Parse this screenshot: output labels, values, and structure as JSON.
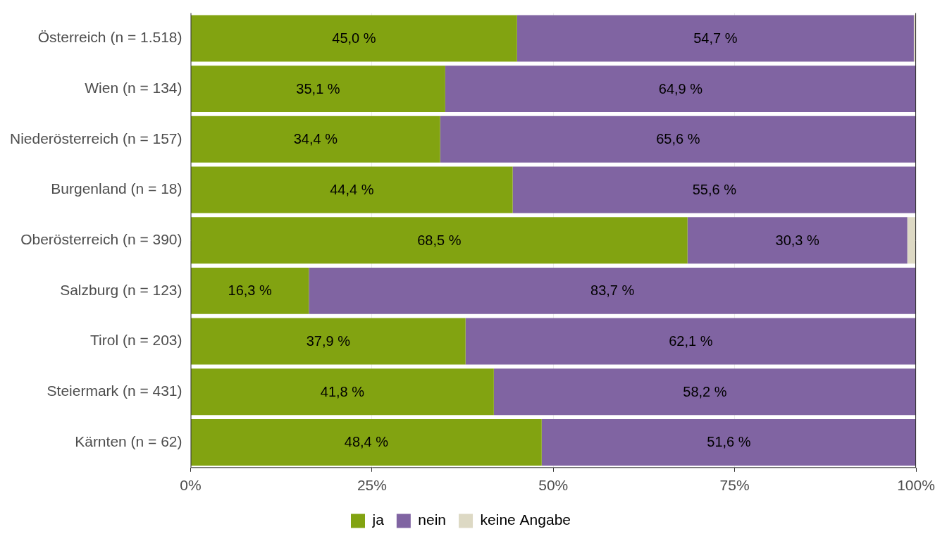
{
  "chart_data": {
    "type": "bar",
    "orientation": "horizontal",
    "stacked": true,
    "data_labels": true,
    "grid": true,
    "legend": "bottom",
    "categories": [
      "Österreich (n = 1.518)",
      "Wien (n = 134)",
      "Niederösterreich (n = 157)",
      "Burgenland (n = 18)",
      "Oberösterreich (n = 390)",
      "Salzburg (n = 123)",
      "Tirol (n = 203)",
      "Steiermark (n = 431)",
      "Kärnten (n = 62)"
    ],
    "xlim": [
      0,
      100
    ],
    "xticks": [
      {
        "value": 0,
        "label": "0%"
      },
      {
        "value": 25,
        "label": "25%"
      },
      {
        "value": 50,
        "label": "50%"
      },
      {
        "value": 75,
        "label": "75%"
      },
      {
        "value": 100,
        "label": "100%"
      }
    ],
    "series": [
      {
        "name": "ja",
        "color": "#82a311",
        "values": [
          45.0,
          35.1,
          34.4,
          44.4,
          68.5,
          16.3,
          37.9,
          41.8,
          48.4
        ],
        "value_labels": [
          "45,0 %",
          "35,1 %",
          "34,4 %",
          "44,4 %",
          "68,5 %",
          "16,3 %",
          "37,9 %",
          "41,8 %",
          "48,4 %"
        ]
      },
      {
        "name": "nein",
        "color": "#8064a2",
        "values": [
          54.7,
          64.9,
          65.6,
          55.6,
          30.3,
          83.7,
          62.1,
          58.2,
          51.6
        ],
        "value_labels": [
          "54,7 %",
          "64,9 %",
          "65,6 %",
          "55,6 %",
          "30,3 %",
          "83,7 %",
          "62,1 %",
          "58,2 %",
          "51,6 %"
        ]
      },
      {
        "name": "keine Angabe",
        "color": "#ddd9c4",
        "values": [
          0.3,
          0,
          0,
          0,
          1.2,
          0,
          0,
          0,
          0
        ]
      }
    ]
  }
}
